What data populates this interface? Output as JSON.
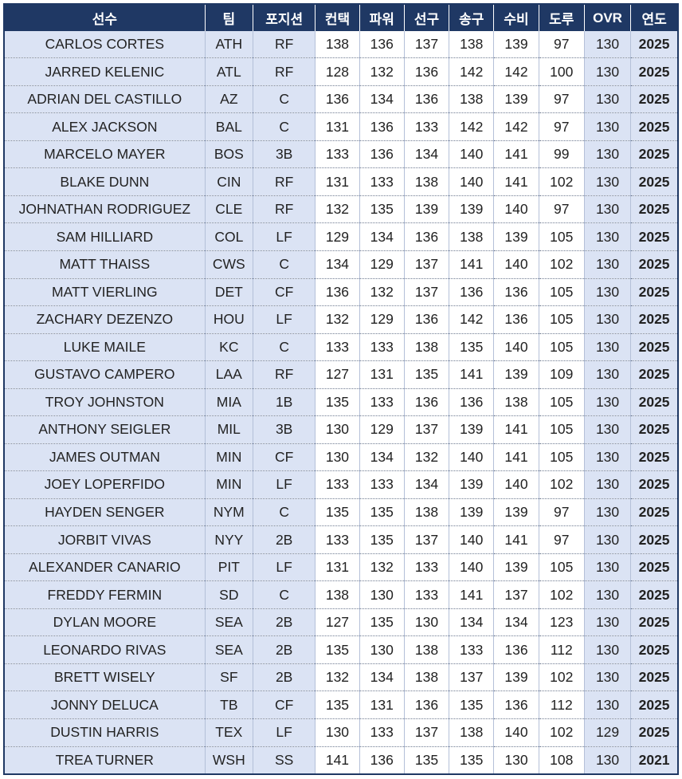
{
  "table": {
    "columns": [
      "선수",
      "팀",
      "포지션",
      "컨택",
      "파워",
      "선구",
      "송구",
      "수비",
      "도루",
      "OVR",
      "연도"
    ],
    "rows": [
      [
        "CARLOS CORTES",
        "ATH",
        "RF",
        138,
        136,
        137,
        138,
        139,
        97,
        130,
        2025
      ],
      [
        "JARRED KELENIC",
        "ATL",
        "RF",
        128,
        132,
        136,
        142,
        142,
        100,
        130,
        2025
      ],
      [
        "ADRIAN DEL CASTILLO",
        "AZ",
        "C",
        136,
        134,
        136,
        138,
        139,
        97,
        130,
        2025
      ],
      [
        "ALEX JACKSON",
        "BAL",
        "C",
        131,
        136,
        133,
        142,
        142,
        97,
        130,
        2025
      ],
      [
        "MARCELO MAYER",
        "BOS",
        "3B",
        133,
        136,
        134,
        140,
        141,
        99,
        130,
        2025
      ],
      [
        "BLAKE DUNN",
        "CIN",
        "RF",
        131,
        133,
        138,
        140,
        141,
        102,
        130,
        2025
      ],
      [
        "JOHNATHAN RODRIGUEZ",
        "CLE",
        "RF",
        132,
        135,
        139,
        139,
        140,
        97,
        130,
        2025
      ],
      [
        "SAM HILLIARD",
        "COL",
        "LF",
        129,
        134,
        136,
        138,
        139,
        105,
        130,
        2025
      ],
      [
        "MATT THAISS",
        "CWS",
        "C",
        134,
        129,
        137,
        141,
        140,
        102,
        130,
        2025
      ],
      [
        "MATT VIERLING",
        "DET",
        "CF",
        136,
        132,
        137,
        136,
        136,
        105,
        130,
        2025
      ],
      [
        "ZACHARY DEZENZO",
        "HOU",
        "LF",
        132,
        129,
        136,
        142,
        136,
        105,
        130,
        2025
      ],
      [
        "LUKE MAILE",
        "KC",
        "C",
        133,
        133,
        138,
        135,
        140,
        105,
        130,
        2025
      ],
      [
        "GUSTAVO CAMPERO",
        "LAA",
        "RF",
        127,
        131,
        135,
        141,
        139,
        109,
        130,
        2025
      ],
      [
        "TROY JOHNSTON",
        "MIA",
        "1B",
        135,
        133,
        136,
        136,
        138,
        105,
        130,
        2025
      ],
      [
        "ANTHONY SEIGLER",
        "MIL",
        "3B",
        130,
        129,
        137,
        139,
        141,
        105,
        130,
        2025
      ],
      [
        "JAMES OUTMAN",
        "MIN",
        "CF",
        130,
        134,
        132,
        140,
        141,
        105,
        130,
        2025
      ],
      [
        "JOEY LOPERFIDO",
        "MIN",
        "LF",
        133,
        133,
        134,
        139,
        140,
        102,
        130,
        2025
      ],
      [
        "HAYDEN SENGER",
        "NYM",
        "C",
        135,
        135,
        138,
        139,
        139,
        97,
        130,
        2025
      ],
      [
        "JORBIT VIVAS",
        "NYY",
        "2B",
        133,
        135,
        137,
        140,
        141,
        97,
        130,
        2025
      ],
      [
        "ALEXANDER CANARIO",
        "PIT",
        "LF",
        131,
        132,
        133,
        140,
        139,
        105,
        130,
        2025
      ],
      [
        "FREDDY FERMIN",
        "SD",
        "C",
        138,
        130,
        133,
        141,
        137,
        102,
        130,
        2025
      ],
      [
        "DYLAN MOORE",
        "SEA",
        "2B",
        127,
        135,
        130,
        134,
        134,
        123,
        130,
        2025
      ],
      [
        "LEONARDO RIVAS",
        "SEA",
        "2B",
        135,
        130,
        138,
        133,
        136,
        112,
        130,
        2025
      ],
      [
        "BRETT WISELY",
        "SF",
        "2B",
        132,
        134,
        138,
        137,
        139,
        102,
        130,
        2025
      ],
      [
        "JONNY DELUCA",
        "TB",
        "CF",
        135,
        131,
        136,
        135,
        136,
        112,
        130,
        2025
      ],
      [
        "DUSTIN HARRIS",
        "TEX",
        "LF",
        130,
        133,
        137,
        138,
        140,
        102,
        129,
        2025
      ],
      [
        "TREA TURNER",
        "WSH",
        "SS",
        141,
        136,
        135,
        135,
        130,
        108,
        130,
        2021
      ]
    ]
  }
}
